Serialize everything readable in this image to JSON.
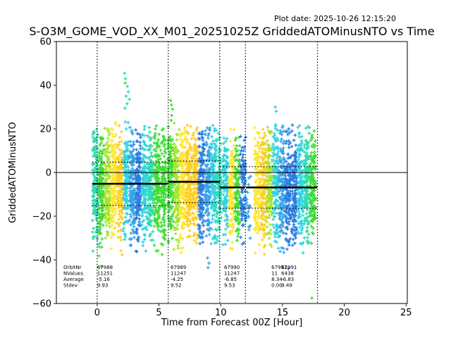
{
  "chart_data": {
    "type": "scatter",
    "title": "S-O3M_GOME_VOD_XX_M01_20251025Z GriddedATOMinusNTO vs Time",
    "xlabel": "Time from Forecast 00Z [Hour]",
    "ylabel": "GriddedATOMinusNTO",
    "annotations": {
      "plot_date": "Plot date: 2025-10-26 12:15:20"
    },
    "marker": "+",
    "grid": false,
    "legend": "none",
    "xlim": [
      -3.3,
      25.1
    ],
    "ylim": [
      -60,
      60
    ],
    "xticks": [
      0,
      5,
      10,
      15,
      20,
      25
    ],
    "yticks": [
      -60,
      -40,
      -20,
      0,
      20,
      40,
      60
    ],
    "zero_line_y": 0,
    "orbit_boundaries_x": [
      0,
      5.75,
      9.92,
      12.0,
      17.83
    ],
    "segments": [
      {
        "x1": -0.4,
        "x2": 5.7,
        "average": -5.16,
        "stdev": 9.93
      },
      {
        "x1": 5.78,
        "x2": 9.92,
        "average": -4.25,
        "stdev": 9.52
      },
      {
        "x1": 9.95,
        "x2": 11.95,
        "average": -6.85,
        "stdev": 9.53
      },
      {
        "x1": 12.05,
        "x2": 17.8,
        "average": -6.83,
        "stdev": 9.49
      }
    ],
    "stats_table": {
      "row_labels": [
        "OrbitNr",
        "NValues",
        "Average",
        "Stdev"
      ],
      "columns": [
        {
          "x": 0.0,
          "orbit": "67988",
          "nvalues": "11251",
          "average": "-5.16",
          "stdev": "9.93"
        },
        {
          "x": 5.94,
          "orbit": "67989",
          "nvalues": "11247",
          "average": "-4.25",
          "stdev": "9.52"
        },
        {
          "x": 10.27,
          "orbit": "67990",
          "nvalues": "11247",
          "average": "-6.85",
          "stdev": "9.53"
        },
        {
          "x": 14.1,
          "orbit": "67991",
          "nvalues": "11",
          "average": "8.34",
          "stdev": "0.00"
        },
        {
          "x": 14.9,
          "orbit": "67991",
          "nvalues": "6438",
          "average": "-6.83",
          "stdev": "9.49"
        }
      ]
    },
    "palette": {
      "teal": "#2bdcb0",
      "green": "#3fdc34",
      "yellowgreen": "#a6e42c",
      "yellow": "#ffe62e",
      "gold": "#ffce1f",
      "cyan": "#2fd2df",
      "sky": "#36a3e9",
      "blue": "#2a7de0"
    },
    "bands": [
      [
        -0.15,
        "teal",
        150,
        -6,
        11,
        -37,
        23
      ],
      [
        0.33,
        "green",
        155,
        -7,
        11,
        -42,
        22
      ],
      [
        0.83,
        "yellowgreen",
        150,
        -6,
        11,
        -36,
        22
      ],
      [
        1.33,
        "yellow",
        155,
        -5,
        11,
        -37,
        23
      ],
      [
        1.83,
        "gold",
        150,
        -6,
        11,
        -38,
        22
      ],
      [
        2.33,
        "cyan",
        140,
        -4,
        11,
        -35,
        26
      ],
      [
        2.83,
        "sky",
        150,
        -6,
        11,
        -36,
        22
      ],
      [
        3.33,
        "blue",
        150,
        -6,
        11,
        -38,
        22
      ],
      [
        3.83,
        "cyan",
        145,
        -6,
        11,
        -36,
        22
      ],
      [
        4.33,
        "teal",
        145,
        -6,
        11,
        -37,
        22
      ],
      [
        4.83,
        "green",
        150,
        -6,
        11,
        -40,
        23
      ],
      [
        5.33,
        "green",
        130,
        -7,
        11,
        -38,
        26
      ],
      [
        5.93,
        "green",
        150,
        -5,
        11,
        -36,
        27
      ],
      [
        6.43,
        "yellowgreen",
        150,
        -5,
        11,
        -36,
        23
      ],
      [
        6.93,
        "yellow",
        155,
        -5,
        11,
        -37,
        23
      ],
      [
        7.43,
        "gold",
        150,
        -5,
        11,
        -36,
        22
      ],
      [
        7.93,
        "gold",
        145,
        -5,
        11,
        -38,
        22
      ],
      [
        8.43,
        "blue",
        150,
        -6,
        11,
        -37,
        22
      ],
      [
        8.93,
        "sky",
        150,
        -6,
        11,
        -42,
        22
      ],
      [
        9.43,
        "cyan",
        145,
        -5,
        11,
        -38,
        22
      ],
      [
        9.85,
        "teal",
        115,
        -6,
        10,
        -35,
        20
      ],
      [
        10.38,
        "cyan",
        125,
        -7,
        11,
        -36,
        21
      ],
      [
        10.88,
        "yellow",
        130,
        -7,
        11,
        -37,
        21
      ],
      [
        11.35,
        "green",
        120,
        -7,
        11,
        -36,
        20
      ],
      [
        11.8,
        "blue",
        95,
        -8,
        10,
        -34,
        17
      ],
      [
        12.2,
        "sky",
        26,
        -16,
        8,
        -34,
        4
      ],
      [
        12.95,
        "yellow",
        140,
        -7,
        11,
        -37,
        22
      ],
      [
        13.45,
        "gold",
        145,
        -7,
        11,
        -38,
        22
      ],
      [
        13.95,
        "yellowgreen",
        140,
        -6,
        11,
        -36,
        22
      ],
      [
        14.45,
        "cyan",
        140,
        -5,
        11,
        -36,
        24
      ],
      [
        14.95,
        "sky",
        145,
        -7,
        11,
        -37,
        22
      ],
      [
        15.45,
        "blue",
        145,
        -7,
        11,
        -43,
        22
      ],
      [
        15.95,
        "blue",
        140,
        -7,
        11,
        -38,
        22
      ],
      [
        16.45,
        "cyan",
        140,
        -7,
        11,
        -37,
        22
      ],
      [
        16.95,
        "teal",
        140,
        -6,
        11,
        -36,
        22
      ],
      [
        17.45,
        "green",
        135,
        -7,
        11,
        -38,
        22
      ]
    ],
    "outliers": [
      [
        2.22,
        45.5,
        "teal"
      ],
      [
        2.3,
        43,
        "teal"
      ],
      [
        2.28,
        41,
        "green"
      ],
      [
        2.45,
        39.5,
        "teal"
      ],
      [
        2.52,
        37,
        "cyan"
      ],
      [
        2.35,
        35,
        "teal"
      ],
      [
        2.6,
        33.5,
        "cyan"
      ],
      [
        2.42,
        31.5,
        "teal"
      ],
      [
        2.25,
        29.5,
        "teal"
      ],
      [
        5.95,
        33,
        "green"
      ],
      [
        6.02,
        31,
        "green"
      ],
      [
        6.1,
        29,
        "green"
      ],
      [
        14.42,
        30,
        "cyan"
      ],
      [
        14.5,
        28,
        "cyan"
      ],
      [
        17.38,
        -57.5,
        "green"
      ],
      [
        8.97,
        -43.5,
        "sky"
      ],
      [
        9.05,
        -41.5,
        "sky"
      ],
      [
        0.35,
        -43,
        "green"
      ],
      [
        15.48,
        -44,
        "blue"
      ],
      [
        12.25,
        -20,
        "sky"
      ],
      [
        12.3,
        -16,
        "sky"
      ]
    ]
  }
}
